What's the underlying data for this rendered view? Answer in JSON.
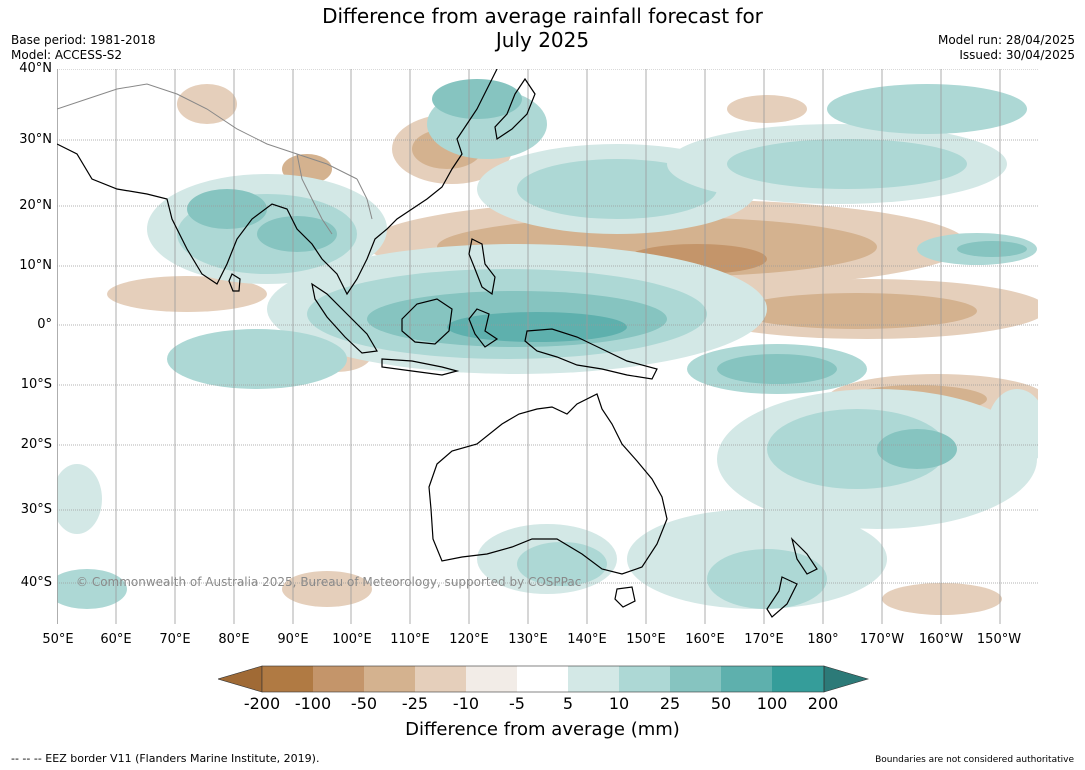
{
  "title_line1": "Difference from average rainfall forecast for",
  "title_line2": "July 2025",
  "meta_left": {
    "base_period": "Base period: 1981-2018",
    "model": "Model: ACCESS-S2"
  },
  "meta_right": {
    "model_run": "Model run: 28/04/2025",
    "issued": "Issued: 30/04/2025"
  },
  "latitude_labels": [
    "40°N",
    "30°N",
    "20°N",
    "10°N",
    "0°",
    "10°S",
    "20°S",
    "30°S",
    "40°S"
  ],
  "longitude_labels": [
    "50°E",
    "60°E",
    "70°E",
    "80°E",
    "90°E",
    "100°E",
    "110°E",
    "120°E",
    "130°E",
    "140°E",
    "150°E",
    "160°E",
    "170°E",
    "180°",
    "170°W",
    "160°W",
    "150°W"
  ],
  "copyright": "© Commonwealth of Australia 2025, Bureau of Meteorology, supported by COSPPac",
  "legend": {
    "title": "Difference from average (mm)",
    "ticks": [
      "-200",
      "-100",
      "-50",
      "-25",
      "-10",
      "-5",
      "5",
      "10",
      "25",
      "50",
      "100",
      "200"
    ],
    "colors": [
      "#a06a35",
      "#b07a43",
      "#c4956a",
      "#d4b28f",
      "#e5cfbb",
      "#f2ece7",
      "#ffffff",
      "#d3e8e6",
      "#add8d5",
      "#86c4c0",
      "#5eb0ad",
      "#359d9a",
      "#2c7a78"
    ]
  },
  "footer_left": "-- -- -- EEZ border V11 (Flanders Marine Institute, 2019).",
  "footer_right": "Boundaries are not considered authoritative"
}
